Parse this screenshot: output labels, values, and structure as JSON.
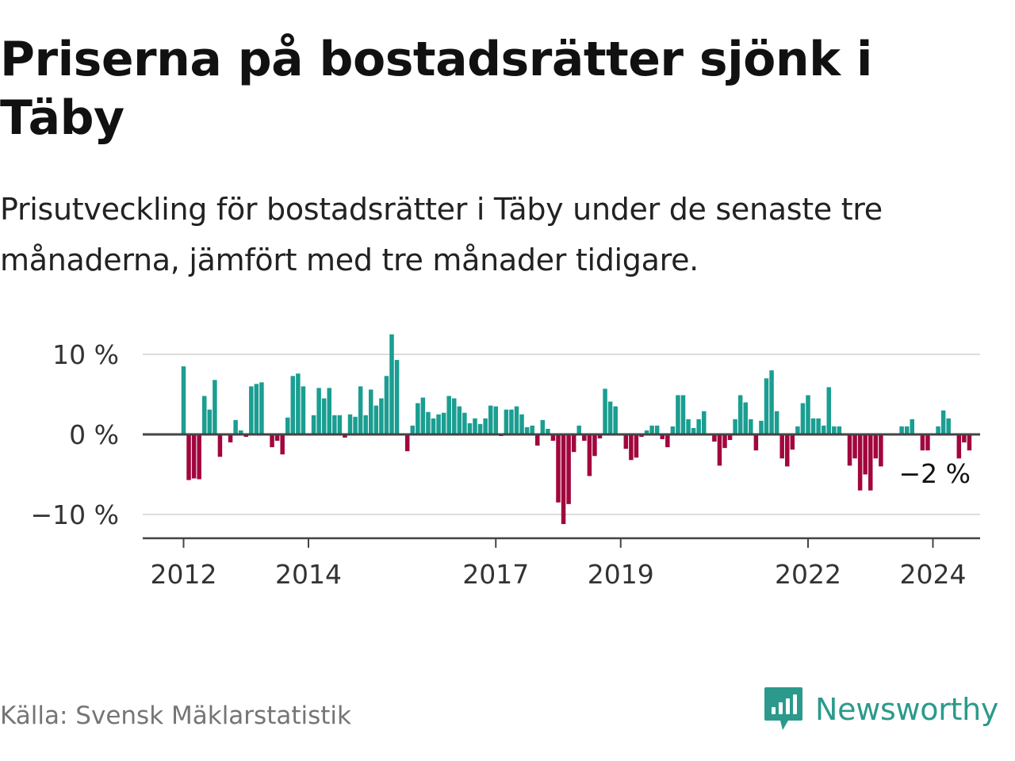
{
  "header": {
    "title": "Priserna på bostadsrätter sjönk i Täby",
    "subtitle": "Prisutveckling för bostadsrätter i Täby under de senaste tre månaderna, jämfört med tre månader tidigare."
  },
  "footer": {
    "source": "Källa: Svensk Mäklarstatistik",
    "brand": "Newsworthy"
  },
  "colors": {
    "positive": "#1a9e91",
    "negative": "#a1063d",
    "grid": "#dddddd",
    "axis": "#444444",
    "brand": "#2b9a8c"
  },
  "chart_data": {
    "type": "bar",
    "title": "Priserna på bostadsrätter sjönk i Täby",
    "xlabel": "",
    "ylabel": "",
    "ylim": [
      -12.8,
      12.8
    ],
    "yticks": [
      10,
      0,
      -10
    ],
    "ytick_labels": [
      "10 %",
      "0 %",
      "−10 %"
    ],
    "x_start": 2012.0,
    "x_step": 0.0833333,
    "xticks": [
      2012,
      2014,
      2017,
      2019,
      2022,
      2024
    ],
    "xtick_labels": [
      "2012",
      "2014",
      "2017",
      "2019",
      "2022",
      "2024"
    ],
    "last_value_label": "−2 %",
    "grid": true,
    "series": [
      {
        "name": "Prisutveckling",
        "values": [
          8.5,
          -5.7,
          -5.5,
          -5.6,
          4.8,
          3.1,
          6.8,
          -2.8,
          0,
          -1.0,
          1.8,
          0.5,
          -0.3,
          6.0,
          6.3,
          6.5,
          0,
          -1.6,
          -0.8,
          -2.5,
          2.1,
          7.3,
          7.6,
          6.0,
          0,
          2.4,
          5.8,
          4.5,
          5.8,
          2.4,
          2.4,
          -0.4,
          2.5,
          2.2,
          6.0,
          2.4,
          5.6,
          3.6,
          4.5,
          7.3,
          12.5,
          9.3,
          0,
          -2.1,
          1.1,
          3.9,
          4.6,
          2.8,
          2.0,
          2.5,
          2.7,
          4.8,
          4.5,
          3.5,
          2.7,
          1.4,
          2.0,
          1.3,
          2.0,
          3.6,
          3.5,
          -0.2,
          3.1,
          3.1,
          3.5,
          2.5,
          0.9,
          1.1,
          -1.4,
          1.8,
          0.7,
          -0.8,
          -8.5,
          -11.2,
          -8.7,
          -2.2,
          1.1,
          -0.8,
          -5.2,
          -2.7,
          -0.5,
          5.7,
          4.1,
          3.5,
          0,
          -1.8,
          -3.2,
          -2.9,
          -0.3,
          0.5,
          1.1,
          1.1,
          -0.6,
          -1.6,
          1.0,
          4.9,
          4.9,
          1.9,
          0.8,
          1.9,
          2.9,
          0,
          -0.9,
          -3.9,
          -1.7,
          -0.7,
          1.9,
          4.9,
          4.0,
          1.9,
          -2.0,
          1.7,
          7.0,
          8.0,
          2.9,
          -3.0,
          -4.0,
          -1.9,
          1.0,
          3.9,
          4.9,
          2.0,
          2.0,
          1.1,
          5.9,
          1.0,
          1.0,
          0,
          -3.9,
          -3.0,
          -7.0,
          -5.0,
          -7.0,
          -3.0,
          -4.0,
          0,
          0,
          0,
          1.0,
          1.0,
          1.9,
          0,
          -2.0,
          -2.0,
          0,
          1.0,
          3.0,
          2.0,
          0,
          -3.0,
          -1.0,
          -2.0
        ]
      }
    ]
  }
}
